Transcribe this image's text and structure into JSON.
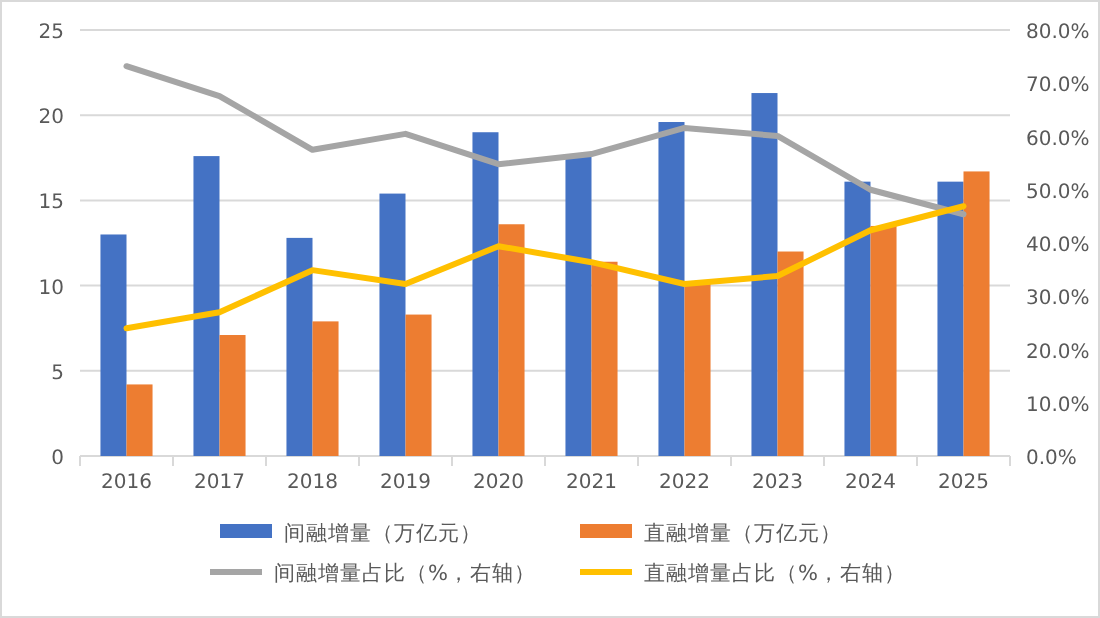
{
  "chart_data": {
    "type": "bar",
    "categories": [
      "2016",
      "2017",
      "2018",
      "2019",
      "2020",
      "2021",
      "2022",
      "2023",
      "2024",
      "2025"
    ],
    "series": [
      {
        "name": "间融增量（万亿元）",
        "color": "#4472c4",
        "values": [
          13.0,
          17.6,
          12.8,
          15.4,
          19.0,
          17.6,
          19.6,
          21.3,
          16.1,
          16.1
        ]
      },
      {
        "name": "直融增量（万亿元）",
        "color": "#ed7d31",
        "values": [
          4.2,
          7.1,
          7.9,
          8.3,
          13.6,
          11.4,
          10.1,
          12.0,
          13.5,
          16.7
        ]
      },
      {
        "name": "间融增量占比（%，右轴）",
        "type": "line",
        "axis": "y2",
        "color": "#a5a5a5",
        "values": [
          73.2,
          67.6,
          57.5,
          60.5,
          54.8,
          56.7,
          61.6,
          60.1,
          50.0,
          45.4
        ]
      },
      {
        "name": "直融增量占比（%，右轴）",
        "type": "line",
        "axis": "y2",
        "color": "#ffc000",
        "values": [
          24.0,
          27.0,
          34.9,
          32.3,
          39.4,
          36.4,
          32.3,
          33.8,
          42.4,
          46.9
        ]
      }
    ],
    "ylim": [
      0,
      25
    ],
    "yticks": [
      0,
      5,
      10,
      15,
      20,
      25
    ],
    "y2lim": [
      0,
      80
    ],
    "y2ticks": [
      {
        "value": 0,
        "label": "0.0%"
      },
      {
        "value": 10,
        "label": "10.0%"
      },
      {
        "value": 20,
        "label": "20.0%"
      },
      {
        "value": 30,
        "label": "30.0%"
      },
      {
        "value": 40,
        "label": "40.0%"
      },
      {
        "value": 50,
        "label": "50.0%"
      },
      {
        "value": 60,
        "label": "60.0%"
      },
      {
        "value": 70,
        "label": "70.0%"
      },
      {
        "value": 80,
        "label": "80.0%"
      }
    ],
    "grid": "y",
    "legend": "bottom"
  }
}
